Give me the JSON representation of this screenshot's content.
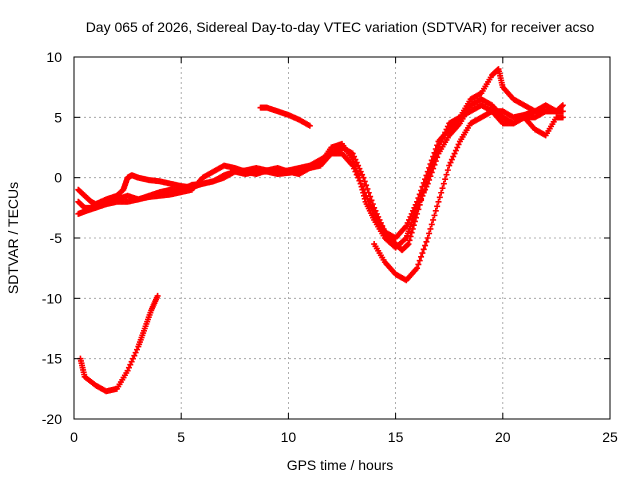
{
  "chart_data": {
    "type": "scatter",
    "title": "Day 065 of 2026, Sidereal Day-to-day VTEC variation (SDTVAR) for receiver acso",
    "xlabel": "GPS time / hours",
    "ylabel": "SDTVAR / TECUs",
    "xlim": [
      0,
      25
    ],
    "ylim": [
      -20,
      10
    ],
    "xticks": [
      "0",
      "5",
      "10",
      "15",
      "20",
      "25"
    ],
    "yticks": [
      "-20",
      "-15",
      "-10",
      "-5",
      "0",
      "5",
      "10"
    ],
    "grid": true,
    "marker": "plus",
    "color": "#ff0000",
    "series": [
      {
        "name": "arc-1",
        "points": [
          [
            0.2,
            -1.0
          ],
          [
            0.5,
            -1.5
          ],
          [
            0.8,
            -2.0
          ],
          [
            1.0,
            -2.2
          ],
          [
            1.5,
            -1.8
          ],
          [
            2.0,
            -1.5
          ],
          [
            2.3,
            -1.0
          ],
          [
            2.5,
            0.0
          ],
          [
            2.7,
            0.2
          ],
          [
            3.0,
            0.0
          ],
          [
            3.5,
            -0.2
          ],
          [
            4.0,
            -0.3
          ],
          [
            4.5,
            -0.5
          ],
          [
            5.0,
            -0.7
          ],
          [
            5.5,
            -0.8
          ],
          [
            6.0,
            -0.5
          ],
          [
            6.5,
            -0.3
          ],
          [
            7.0,
            0.2
          ],
          [
            7.5,
            0.5
          ],
          [
            8.0,
            0.3
          ],
          [
            8.5,
            0.5
          ],
          [
            9.0,
            0.5
          ],
          [
            9.5,
            0.3
          ],
          [
            10.0,
            0.4
          ],
          [
            10.5,
            0.5
          ],
          [
            11.0,
            0.8
          ],
          [
            11.5,
            1.0
          ],
          [
            12.0,
            2.0
          ],
          [
            12.5,
            2.5
          ],
          [
            13.0,
            2.0
          ],
          [
            13.5,
            0.0
          ],
          [
            14.0,
            -2.5
          ],
          [
            14.5,
            -4.5
          ],
          [
            15.0,
            -5.5
          ],
          [
            15.3,
            -6.0
          ],
          [
            15.6,
            -5.5
          ],
          [
            16.0,
            -3.0
          ],
          [
            16.5,
            0.0
          ],
          [
            17.0,
            2.5
          ],
          [
            17.5,
            4.5
          ],
          [
            18.0,
            5.0
          ],
          [
            18.5,
            5.5
          ],
          [
            19.0,
            6.0
          ],
          [
            19.5,
            5.5
          ],
          [
            20.0,
            4.5
          ],
          [
            20.5,
            4.5
          ],
          [
            21.0,
            5.0
          ],
          [
            21.5,
            5.0
          ],
          [
            22.0,
            5.5
          ],
          [
            22.5,
            5.5
          ],
          [
            22.8,
            5.5
          ]
        ]
      },
      {
        "name": "arc-2",
        "points": [
          [
            0.2,
            -2.0
          ],
          [
            0.5,
            -2.5
          ],
          [
            1.0,
            -2.5
          ],
          [
            1.5,
            -2.0
          ],
          [
            2.0,
            -1.8
          ],
          [
            2.5,
            -1.5
          ],
          [
            3.0,
            -1.8
          ],
          [
            3.5,
            -1.6
          ],
          [
            4.0,
            -1.5
          ],
          [
            4.5,
            -1.4
          ],
          [
            5.0,
            -1.2
          ],
          [
            5.5,
            -1.0
          ],
          [
            6.0,
            0.0
          ],
          [
            6.5,
            0.5
          ],
          [
            7.0,
            1.0
          ],
          [
            7.5,
            0.8
          ],
          [
            8.0,
            0.5
          ],
          [
            8.5,
            0.3
          ],
          [
            9.0,
            0.6
          ],
          [
            9.5,
            0.8
          ],
          [
            10.0,
            0.5
          ],
          [
            10.5,
            0.3
          ],
          [
            11.0,
            0.8
          ],
          [
            11.5,
            1.2
          ],
          [
            12.0,
            2.5
          ],
          [
            12.5,
            2.8
          ],
          [
            13.0,
            1.5
          ],
          [
            13.3,
            0.0
          ],
          [
            13.6,
            -2.0
          ],
          [
            14.0,
            -3.5
          ],
          [
            14.5,
            -5.0
          ],
          [
            15.0,
            -5.8
          ],
          [
            15.5,
            -5.0
          ],
          [
            15.8,
            -3.5
          ],
          [
            16.0,
            -2.5
          ],
          [
            16.5,
            -0.5
          ],
          [
            17.0,
            2.0
          ],
          [
            17.5,
            3.5
          ],
          [
            18.0,
            4.5
          ],
          [
            18.5,
            6.0
          ],
          [
            19.0,
            6.5
          ],
          [
            19.5,
            6.0
          ],
          [
            20.0,
            5.0
          ],
          [
            20.5,
            4.5
          ],
          [
            21.0,
            5.0
          ],
          [
            21.5,
            4.0
          ],
          [
            22.0,
            3.5
          ],
          [
            22.5,
            5.0
          ],
          [
            22.8,
            5.0
          ]
        ]
      },
      {
        "name": "arc-3",
        "points": [
          [
            0.2,
            -3.0
          ],
          [
            0.5,
            -2.8
          ],
          [
            1.0,
            -2.5
          ],
          [
            1.5,
            -2.2
          ],
          [
            2.0,
            -2.0
          ],
          [
            2.5,
            -2.0
          ],
          [
            3.0,
            -1.8
          ],
          [
            3.5,
            -1.5
          ],
          [
            4.0,
            -1.2
          ],
          [
            4.5,
            -1.0
          ],
          [
            5.0,
            -1.0
          ],
          [
            5.5,
            -0.6
          ],
          [
            6.0,
            -0.5
          ],
          [
            6.5,
            -0.3
          ],
          [
            7.0,
            0.0
          ],
          [
            7.5,
            0.5
          ],
          [
            8.0,
            0.6
          ],
          [
            8.5,
            0.8
          ],
          [
            9.0,
            0.6
          ],
          [
            9.5,
            0.5
          ],
          [
            10.0,
            0.6
          ],
          [
            10.5,
            0.8
          ],
          [
            11.0,
            1.0
          ],
          [
            11.5,
            1.5
          ],
          [
            12.0,
            2.0
          ],
          [
            12.5,
            2.0
          ],
          [
            13.0,
            1.0
          ],
          [
            13.5,
            -1.0
          ],
          [
            14.0,
            -3.0
          ],
          [
            14.5,
            -4.5
          ],
          [
            15.0,
            -5.0
          ],
          [
            15.5,
            -4.0
          ],
          [
            16.0,
            -2.0
          ],
          [
            16.5,
            0.5
          ],
          [
            17.0,
            3.0
          ],
          [
            17.5,
            4.0
          ],
          [
            18.0,
            5.0
          ],
          [
            18.5,
            6.5
          ],
          [
            19.0,
            7.0
          ],
          [
            19.5,
            8.5
          ],
          [
            19.8,
            9.0
          ],
          [
            20.0,
            7.5
          ],
          [
            20.5,
            6.5
          ],
          [
            21.0,
            6.0
          ],
          [
            21.5,
            5.5
          ],
          [
            22.0,
            6.0
          ],
          [
            22.5,
            5.5
          ],
          [
            22.8,
            6.0
          ]
        ]
      },
      {
        "name": "arc-4",
        "points": [
          [
            14.0,
            -5.5
          ],
          [
            14.5,
            -7.0
          ],
          [
            15.0,
            -8.0
          ],
          [
            15.5,
            -8.5
          ],
          [
            16.0,
            -7.5
          ],
          [
            16.5,
            -5.0
          ],
          [
            17.0,
            -2.0
          ],
          [
            17.5,
            1.0
          ],
          [
            18.0,
            3.0
          ],
          [
            18.5,
            4.5
          ],
          [
            19.0,
            5.0
          ],
          [
            19.5,
            5.5
          ],
          [
            20.0,
            5.5
          ],
          [
            20.5,
            5.0
          ],
          [
            21.0,
            5.2
          ],
          [
            21.5,
            5.5
          ],
          [
            22.0,
            5.5
          ],
          [
            22.5,
            5.5
          ]
        ]
      },
      {
        "name": "arc-5",
        "points": [
          [
            8.7,
            5.8
          ],
          [
            9.0,
            5.8
          ],
          [
            9.5,
            5.5
          ],
          [
            10.0,
            5.2
          ],
          [
            10.5,
            4.8
          ],
          [
            11.0,
            4.3
          ]
        ]
      },
      {
        "name": "arc-6",
        "points": [
          [
            0.3,
            -15.0
          ],
          [
            0.5,
            -16.5
          ],
          [
            1.0,
            -17.2
          ],
          [
            1.5,
            -17.7
          ],
          [
            2.0,
            -17.5
          ],
          [
            2.5,
            -16.0
          ],
          [
            3.0,
            -14.0
          ],
          [
            3.3,
            -12.5
          ],
          [
            3.6,
            -11.0
          ],
          [
            3.9,
            -9.8
          ]
        ]
      }
    ]
  }
}
